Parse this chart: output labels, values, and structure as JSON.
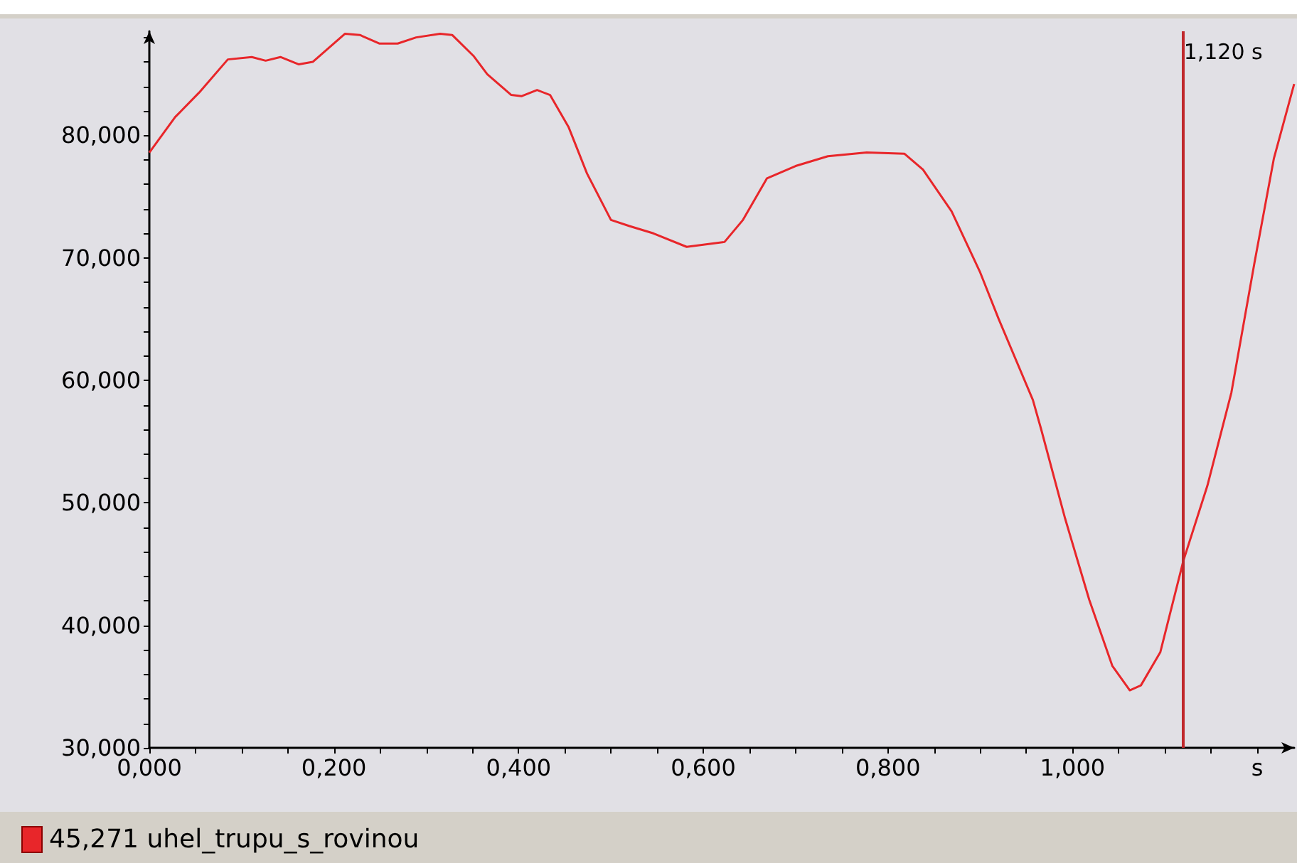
{
  "chart_data": {
    "type": "line",
    "legend": "bottom left",
    "grid": false,
    "marker": "none",
    "line_style": "solid",
    "xlim": [
      0,
      1.24
    ],
    "ylim": [
      30,
      88.5
    ],
    "xticks": [
      {
        "value": 0,
        "label": "0,000"
      },
      {
        "value": 0.05,
        "label": null
      },
      {
        "value": 0.1,
        "label": null
      },
      {
        "value": 0.15,
        "label": null
      },
      {
        "value": 0.2,
        "label": "0,200"
      },
      {
        "value": 0.25,
        "label": null
      },
      {
        "value": 0.3,
        "label": null
      },
      {
        "value": 0.35,
        "label": null
      },
      {
        "value": 0.4,
        "label": "0,400"
      },
      {
        "value": 0.45,
        "label": null
      },
      {
        "value": 0.5,
        "label": null
      },
      {
        "value": 0.55,
        "label": null
      },
      {
        "value": 0.6,
        "label": "0,600"
      },
      {
        "value": 0.65,
        "label": null
      },
      {
        "value": 0.7,
        "label": null
      },
      {
        "value": 0.75,
        "label": null
      },
      {
        "value": 0.8,
        "label": "0,800"
      },
      {
        "value": 0.85,
        "label": null
      },
      {
        "value": 0.9,
        "label": null
      },
      {
        "value": 0.95,
        "label": null
      },
      {
        "value": 1.0,
        "label": "1,000"
      },
      {
        "value": 1.05,
        "label": null
      },
      {
        "value": 1.1,
        "label": null
      },
      {
        "value": 1.15,
        "label": null
      },
      {
        "value": 1.2,
        "label": "s"
      }
    ],
    "yticks": [
      {
        "value": 30,
        "label": "30,000"
      },
      {
        "value": 32,
        "label": null
      },
      {
        "value": 34,
        "label": null
      },
      {
        "value": 36,
        "label": null
      },
      {
        "value": 38,
        "label": null
      },
      {
        "value": 40,
        "label": "40,000"
      },
      {
        "value": 42,
        "label": null
      },
      {
        "value": 44,
        "label": null
      },
      {
        "value": 46,
        "label": null
      },
      {
        "value": 48,
        "label": null
      },
      {
        "value": 50,
        "label": "50,000"
      },
      {
        "value": 52,
        "label": null
      },
      {
        "value": 54,
        "label": null
      },
      {
        "value": 56,
        "label": null
      },
      {
        "value": 58,
        "label": null
      },
      {
        "value": 60,
        "label": "60,000"
      },
      {
        "value": 62,
        "label": null
      },
      {
        "value": 64,
        "label": null
      },
      {
        "value": 66,
        "label": null
      },
      {
        "value": 68,
        "label": null
      },
      {
        "value": 70,
        "label": "70,000"
      },
      {
        "value": 72,
        "label": null
      },
      {
        "value": 74,
        "label": null
      },
      {
        "value": 76,
        "label": null
      },
      {
        "value": 78,
        "label": null
      },
      {
        "value": 80,
        "label": "80,000"
      },
      {
        "value": 82,
        "label": null
      },
      {
        "value": 84,
        "label": null
      },
      {
        "value": 86,
        "label": null
      },
      {
        "value": 88,
        "label": null
      }
    ],
    "ref_lines": [
      {
        "axis": "x",
        "value": 1.12,
        "label": "1,120 s",
        "color": "#c0282c"
      }
    ],
    "series": [
      {
        "name": "45,271 uhel_trupu_s_rovinou",
        "color": "#e8262a",
        "x": [
          0,
          0.028,
          0.054,
          0.085,
          0.111,
          0.126,
          0.142,
          0.162,
          0.177,
          0.212,
          0.228,
          0.249,
          0.269,
          0.289,
          0.315,
          0.328,
          0.351,
          0.366,
          0.392,
          0.403,
          0.42,
          0.434,
          0.454,
          0.474,
          0.5,
          0.52,
          0.546,
          0.582,
          0.623,
          0.643,
          0.669,
          0.7,
          0.735,
          0.777,
          0.818,
          0.838,
          0.869,
          0.9,
          0.92,
          0.957,
          0.966,
          0.992,
          1.018,
          1.043,
          1.062,
          1.074,
          1.095,
          1.12,
          1.146,
          1.172,
          1.197,
          1.218,
          1.24
        ],
        "values": [
          78.6,
          81.5,
          83.5,
          86.2,
          86.4,
          86.1,
          86.4,
          85.8,
          86.0,
          88.3,
          88.2,
          87.5,
          87.5,
          88.0,
          88.3,
          88.2,
          86.5,
          85.0,
          83.3,
          83.2,
          83.7,
          83.3,
          80.7,
          76.9,
          73.1,
          72.6,
          72.0,
          70.9,
          71.3,
          73.1,
          76.5,
          77.5,
          78.3,
          78.6,
          78.5,
          77.2,
          73.8,
          68.8,
          65.0,
          58.4,
          56.0,
          48.7,
          42.1,
          36.7,
          34.7,
          35.1,
          37.8,
          45.271,
          51.4,
          59.0,
          69.6,
          78.1,
          84.2
        ]
      }
    ]
  }
}
